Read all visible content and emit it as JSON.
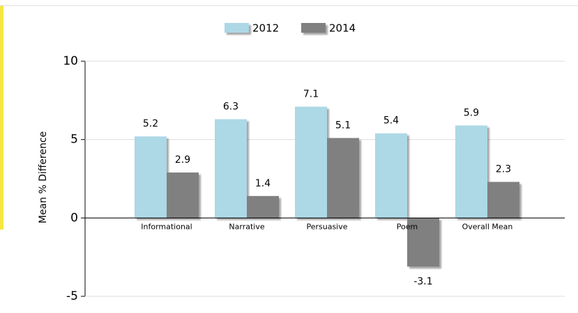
{
  "chart_data": {
    "type": "bar",
    "y_label": "Mean % Difference",
    "categories": [
      "Informational",
      "Narrative",
      "Persuasive",
      "Poem",
      "Overall Mean"
    ],
    "series": [
      {
        "name": "2012",
        "color": "#add8e6",
        "values": [
          5.2,
          6.3,
          7.1,
          5.4,
          5.9
        ]
      },
      {
        "name": "2014",
        "color": "#808080",
        "values": [
          2.9,
          1.4,
          5.1,
          -3.1,
          2.3
        ]
      }
    ],
    "ylim": [
      -5,
      10
    ],
    "yticks": [
      -5,
      0,
      5,
      10
    ],
    "grid": true,
    "legend": "top"
  }
}
